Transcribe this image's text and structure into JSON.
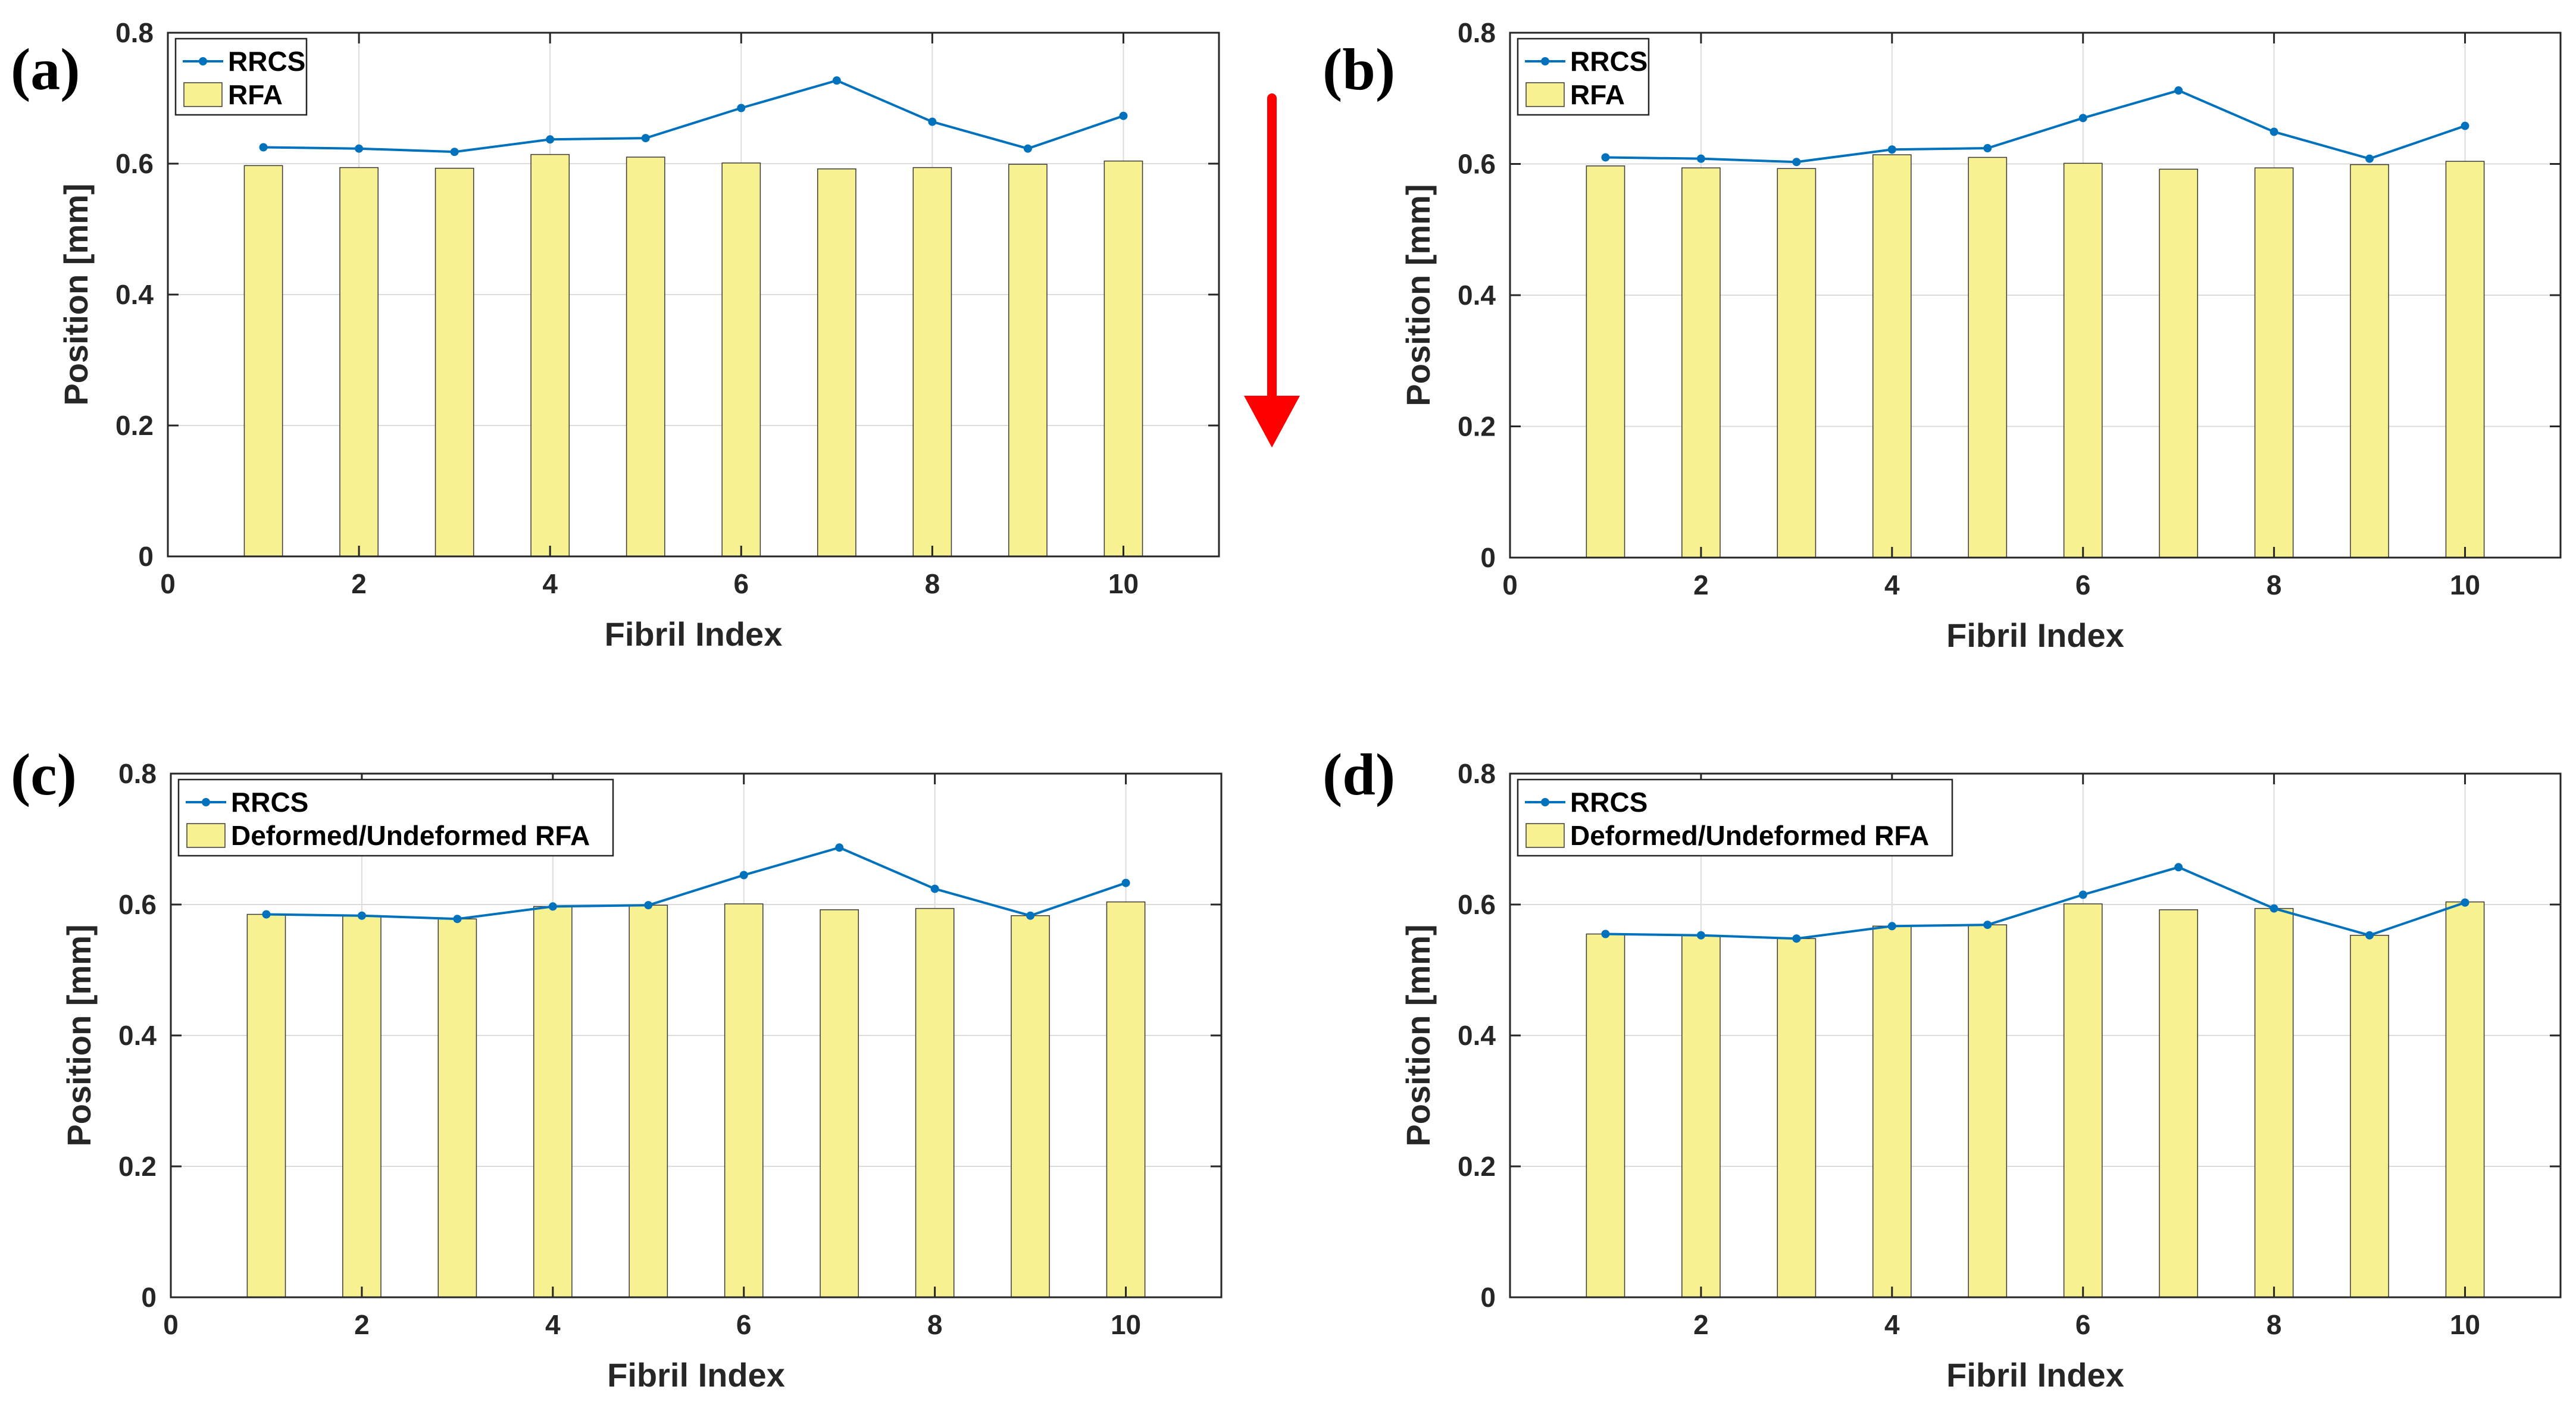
{
  "colors": {
    "line": "#0072BD",
    "bar": "#F7F191",
    "arrow": "#FF0000"
  },
  "arrow": {
    "name": "red-down-arrow-icon"
  },
  "chart_data": [
    {
      "panel": "(a)",
      "type": "bar+line",
      "xlabel": "Fibril Index",
      "ylabel": "Position [mm]",
      "xlim": [
        0,
        11
      ],
      "ylim": [
        0,
        0.8
      ],
      "xticks": [
        0,
        2,
        4,
        6,
        8,
        10
      ],
      "xtick_labels": [
        "0",
        "2",
        "4",
        "6",
        "8",
        "10"
      ],
      "yticks": [
        0,
        0.2,
        0.4,
        0.6,
        0.8
      ],
      "ytick_labels": [
        "0",
        "0.2",
        "0.4",
        "0.6",
        "0.8"
      ],
      "grid": true,
      "legend_location": "top-left",
      "x": [
        1,
        2,
        3,
        4,
        5,
        6,
        7,
        8,
        9,
        10
      ],
      "series": [
        {
          "name": "RRCS",
          "kind": "line",
          "values": [
            0.625,
            0.623,
            0.618,
            0.637,
            0.639,
            0.685,
            0.727,
            0.664,
            0.623,
            0.673
          ]
        },
        {
          "name": "RFA",
          "kind": "bar",
          "values": [
            0.597,
            0.594,
            0.593,
            0.614,
            0.61,
            0.601,
            0.592,
            0.594,
            0.599,
            0.604
          ]
        }
      ]
    },
    {
      "panel": "(b)",
      "type": "bar+line",
      "xlabel": "Fibril Index",
      "ylabel": "Position [mm]",
      "xlim": [
        0,
        11
      ],
      "ylim": [
        0,
        0.8
      ],
      "xticks": [
        0,
        2,
        4,
        6,
        8,
        10
      ],
      "xtick_labels": [
        "0",
        "2",
        "4",
        "6",
        "8",
        "10"
      ],
      "yticks": [
        0,
        0.2,
        0.4,
        0.6,
        0.8
      ],
      "ytick_labels": [
        "0",
        "0.2",
        "0.4",
        "0.6",
        "0.8"
      ],
      "grid": true,
      "legend_location": "top-left",
      "x": [
        1,
        2,
        3,
        4,
        5,
        6,
        7,
        8,
        9,
        10
      ],
      "series": [
        {
          "name": "RRCS",
          "kind": "line",
          "values": [
            0.61,
            0.608,
            0.603,
            0.622,
            0.624,
            0.67,
            0.712,
            0.649,
            0.608,
            0.658
          ]
        },
        {
          "name": "RFA",
          "kind": "bar",
          "values": [
            0.597,
            0.594,
            0.593,
            0.614,
            0.61,
            0.601,
            0.592,
            0.594,
            0.599,
            0.604
          ]
        }
      ]
    },
    {
      "panel": "(c)",
      "type": "bar+line",
      "xlabel": "Fibril Index",
      "ylabel": "Position [mm]",
      "xlim": [
        0,
        11
      ],
      "ylim": [
        0,
        0.8
      ],
      "xticks": [
        0,
        2,
        4,
        6,
        8,
        10
      ],
      "xtick_labels": [
        "0",
        "2",
        "4",
        "6",
        "8",
        "10"
      ],
      "yticks": [
        0,
        0.2,
        0.4,
        0.6,
        0.8
      ],
      "ytick_labels": [
        "0",
        "0.2",
        "0.4",
        "0.6",
        "0.8"
      ],
      "grid": true,
      "legend_location": "top-left",
      "x": [
        1,
        2,
        3,
        4,
        5,
        6,
        7,
        8,
        9,
        10
      ],
      "series": [
        {
          "name": "RRCS",
          "kind": "line",
          "values": [
            0.585,
            0.583,
            0.578,
            0.597,
            0.599,
            0.645,
            0.687,
            0.624,
            0.583,
            0.633
          ]
        },
        {
          "name": "Deformed/Undeformed RFA",
          "kind": "bar",
          "values": [
            0.585,
            0.583,
            0.578,
            0.597,
            0.599,
            0.601,
            0.592,
            0.594,
            0.583,
            0.604
          ]
        }
      ]
    },
    {
      "panel": "(d)",
      "type": "bar+line",
      "xlabel": "Fibril Index",
      "ylabel": "Position [mm]",
      "xlim": [
        0,
        11
      ],
      "ylim": [
        0,
        0.8
      ],
      "xticks": [
        2,
        4,
        6,
        8,
        10
      ],
      "xtick_labels": [
        "2",
        "4",
        "6",
        "8",
        "10"
      ],
      "yticks": [
        0,
        0.2,
        0.4,
        0.6,
        0.8
      ],
      "ytick_labels": [
        "0",
        "0.2",
        "0.4",
        "0.6",
        "0.8"
      ],
      "grid": true,
      "legend_location": "top-left",
      "x": [
        1,
        2,
        3,
        4,
        5,
        6,
        7,
        8,
        9,
        10
      ],
      "series": [
        {
          "name": "RRCS",
          "kind": "line",
          "values": [
            0.555,
            0.553,
            0.548,
            0.567,
            0.569,
            0.615,
            0.657,
            0.594,
            0.553,
            0.603
          ]
        },
        {
          "name": "Deformed/Undeformed RFA",
          "kind": "bar",
          "values": [
            0.555,
            0.553,
            0.548,
            0.567,
            0.569,
            0.601,
            0.592,
            0.594,
            0.553,
            0.604
          ]
        }
      ]
    }
  ]
}
